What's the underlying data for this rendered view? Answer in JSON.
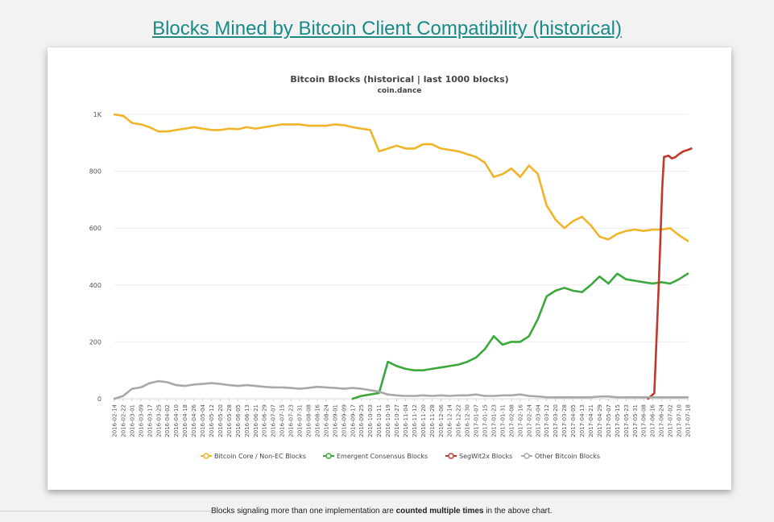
{
  "page": {
    "title": "Blocks Mined by Bitcoin Client Compatibility (historical)",
    "footnote_pre": "Blocks signaling more than one implementation are ",
    "footnote_bold": "counted multiple times",
    "footnote_post": " in the above chart."
  },
  "chart_data": {
    "type": "line",
    "title": "Bitcoin Blocks (historical | last 1000 blocks)",
    "subtitle": "coin.dance",
    "xlabel": "",
    "ylabel": "",
    "ylim": [
      0,
      1000
    ],
    "yticks": [
      {
        "value": 0,
        "label": "0"
      },
      {
        "value": 200,
        "label": "200"
      },
      {
        "value": 400,
        "label": "400"
      },
      {
        "value": 600,
        "label": "600"
      },
      {
        "value": 800,
        "label": "800"
      },
      {
        "value": 1000,
        "label": "1K"
      }
    ],
    "grid": true,
    "legend_position": "bottom",
    "categories": [
      "2016-02-14",
      "2016-02-22",
      "2016-03-01",
      "2016-03-09",
      "2016-03-17",
      "2016-03-25",
      "2016-04-02",
      "2016-04-10",
      "2016-04-18",
      "2016-04-26",
      "2016-05-04",
      "2016-05-12",
      "2016-05-20",
      "2016-05-28",
      "2016-06-05",
      "2016-06-13",
      "2016-06-21",
      "2016-06-29",
      "2016-07-07",
      "2016-07-15",
      "2016-07-23",
      "2016-07-31",
      "2016-08-08",
      "2016-08-16",
      "2016-08-24",
      "2016-09-01",
      "2016-09-09",
      "2016-09-17",
      "2016-09-25",
      "2016-10-03",
      "2016-10-11",
      "2016-10-19",
      "2016-10-27",
      "2016-11-04",
      "2016-11-12",
      "2016-11-20",
      "2016-11-28",
      "2016-12-06",
      "2016-12-14",
      "2016-12-22",
      "2016-12-30",
      "2017-01-07",
      "2017-01-15",
      "2017-01-23",
      "2017-01-31",
      "2017-02-08",
      "2017-02-16",
      "2017-02-24",
      "2017-03-04",
      "2017-03-12",
      "2017-03-20",
      "2017-03-28",
      "2017-04-05",
      "2017-04-13",
      "2017-04-21",
      "2017-04-29",
      "2017-05-07",
      "2017-05-15",
      "2017-05-23",
      "2017-05-31",
      "2017-06-08",
      "2017-06-16",
      "2017-06-24",
      "2017-07-02",
      "2017-07-10",
      "2017-07-18"
    ],
    "series": [
      {
        "name": "Bitcoin Core / Non-EC Blocks",
        "color": "#f0b429",
        "points": [
          [
            0,
            1000
          ],
          [
            1,
            995
          ],
          [
            2,
            970
          ],
          [
            3,
            965
          ],
          [
            4,
            955
          ],
          [
            5,
            940
          ],
          [
            6,
            940
          ],
          [
            7,
            945
          ],
          [
            8,
            950
          ],
          [
            9,
            955
          ],
          [
            10,
            950
          ],
          [
            11,
            945
          ],
          [
            12,
            945
          ],
          [
            13,
            950
          ],
          [
            14,
            948
          ],
          [
            15,
            955
          ],
          [
            16,
            950
          ],
          [
            17,
            955
          ],
          [
            18,
            960
          ],
          [
            19,
            965
          ],
          [
            20,
            965
          ],
          [
            21,
            965
          ],
          [
            22,
            960
          ],
          [
            23,
            960
          ],
          [
            24,
            960
          ],
          [
            25,
            965
          ],
          [
            26,
            962
          ],
          [
            27,
            955
          ],
          [
            28,
            950
          ],
          [
            29,
            945
          ],
          [
            30,
            870
          ],
          [
            31,
            880
          ],
          [
            32,
            890
          ],
          [
            33,
            880
          ],
          [
            34,
            880
          ],
          [
            35,
            895
          ],
          [
            36,
            895
          ],
          [
            37,
            880
          ],
          [
            38,
            875
          ],
          [
            39,
            870
          ],
          [
            40,
            860
          ],
          [
            41,
            850
          ],
          [
            42,
            830
          ],
          [
            43,
            780
          ],
          [
            44,
            790
          ],
          [
            45,
            810
          ],
          [
            46,
            780
          ],
          [
            47,
            820
          ],
          [
            48,
            790
          ],
          [
            49,
            680
          ],
          [
            50,
            630
          ],
          [
            51,
            600
          ],
          [
            52,
            625
          ],
          [
            53,
            640
          ],
          [
            54,
            610
          ],
          [
            55,
            570
          ],
          [
            56,
            560
          ],
          [
            57,
            580
          ],
          [
            58,
            590
          ],
          [
            59,
            595
          ],
          [
            60,
            590
          ],
          [
            61,
            595
          ],
          [
            62,
            595
          ],
          [
            63,
            600
          ],
          [
            64,
            575
          ],
          [
            65,
            555
          ]
        ]
      },
      {
        "name": "Emergent Consensus Blocks",
        "color": "#3aa83a",
        "points": [
          [
            27,
            0
          ],
          [
            28,
            10
          ],
          [
            29,
            15
          ],
          [
            30,
            20
          ],
          [
            31,
            130
          ],
          [
            32,
            115
          ],
          [
            33,
            105
          ],
          [
            34,
            100
          ],
          [
            35,
            100
          ],
          [
            36,
            105
          ],
          [
            37,
            110
          ],
          [
            38,
            115
          ],
          [
            39,
            120
          ],
          [
            40,
            130
          ],
          [
            41,
            145
          ],
          [
            42,
            175
          ],
          [
            43,
            220
          ],
          [
            44,
            190
          ],
          [
            45,
            200
          ],
          [
            46,
            200
          ],
          [
            47,
            220
          ],
          [
            48,
            280
          ],
          [
            49,
            360
          ],
          [
            50,
            380
          ],
          [
            51,
            390
          ],
          [
            52,
            380
          ],
          [
            53,
            375
          ],
          [
            54,
            400
          ],
          [
            55,
            430
          ],
          [
            56,
            405
          ],
          [
            57,
            440
          ],
          [
            58,
            420
          ],
          [
            59,
            415
          ],
          [
            60,
            410
          ],
          [
            61,
            405
          ],
          [
            62,
            410
          ],
          [
            63,
            405
          ],
          [
            64,
            420
          ],
          [
            65,
            440
          ]
        ]
      },
      {
        "name": "SegWit2x Blocks",
        "color": "#c0392b",
        "points": [
          [
            60.5,
            0
          ],
          [
            61.2,
            20
          ],
          [
            61.7,
            400
          ],
          [
            62.1,
            740
          ],
          [
            62.3,
            850
          ],
          [
            62.8,
            855
          ],
          [
            63.2,
            845
          ],
          [
            63.6,
            850
          ],
          [
            64,
            860
          ],
          [
            64.5,
            870
          ],
          [
            65,
            875
          ],
          [
            65.4,
            880
          ]
        ]
      },
      {
        "name": "Other Bitcoin Blocks",
        "color": "#a8a8a8",
        "points": [
          [
            0,
            0
          ],
          [
            1,
            10
          ],
          [
            2,
            35
          ],
          [
            3,
            40
          ],
          [
            4,
            55
          ],
          [
            5,
            62
          ],
          [
            6,
            58
          ],
          [
            7,
            48
          ],
          [
            8,
            45
          ],
          [
            9,
            50
          ],
          [
            10,
            52
          ],
          [
            11,
            55
          ],
          [
            12,
            52
          ],
          [
            13,
            48
          ],
          [
            14,
            45
          ],
          [
            15,
            48
          ],
          [
            16,
            45
          ],
          [
            17,
            42
          ],
          [
            18,
            40
          ],
          [
            19,
            40
          ],
          [
            20,
            38
          ],
          [
            21,
            35
          ],
          [
            22,
            38
          ],
          [
            23,
            42
          ],
          [
            24,
            40
          ],
          [
            25,
            38
          ],
          [
            26,
            35
          ],
          [
            27,
            38
          ],
          [
            28,
            35
          ],
          [
            29,
            30
          ],
          [
            30,
            25
          ],
          [
            31,
            15
          ],
          [
            32,
            12
          ],
          [
            33,
            10
          ],
          [
            34,
            10
          ],
          [
            35,
            12
          ],
          [
            36,
            10
          ],
          [
            37,
            12
          ],
          [
            38,
            10
          ],
          [
            39,
            12
          ],
          [
            40,
            12
          ],
          [
            41,
            15
          ],
          [
            42,
            10
          ],
          [
            43,
            10
          ],
          [
            44,
            12
          ],
          [
            45,
            12
          ],
          [
            46,
            15
          ],
          [
            47,
            10
          ],
          [
            48,
            8
          ],
          [
            49,
            5
          ],
          [
            50,
            5
          ],
          [
            51,
            5
          ],
          [
            52,
            5
          ],
          [
            53,
            5
          ],
          [
            54,
            5
          ],
          [
            55,
            8
          ],
          [
            56,
            8
          ],
          [
            57,
            5
          ],
          [
            58,
            5
          ],
          [
            59,
            5
          ],
          [
            60,
            5
          ],
          [
            61,
            5
          ],
          [
            62,
            5
          ],
          [
            63,
            5
          ],
          [
            64,
            5
          ],
          [
            65,
            5
          ]
        ]
      }
    ]
  }
}
